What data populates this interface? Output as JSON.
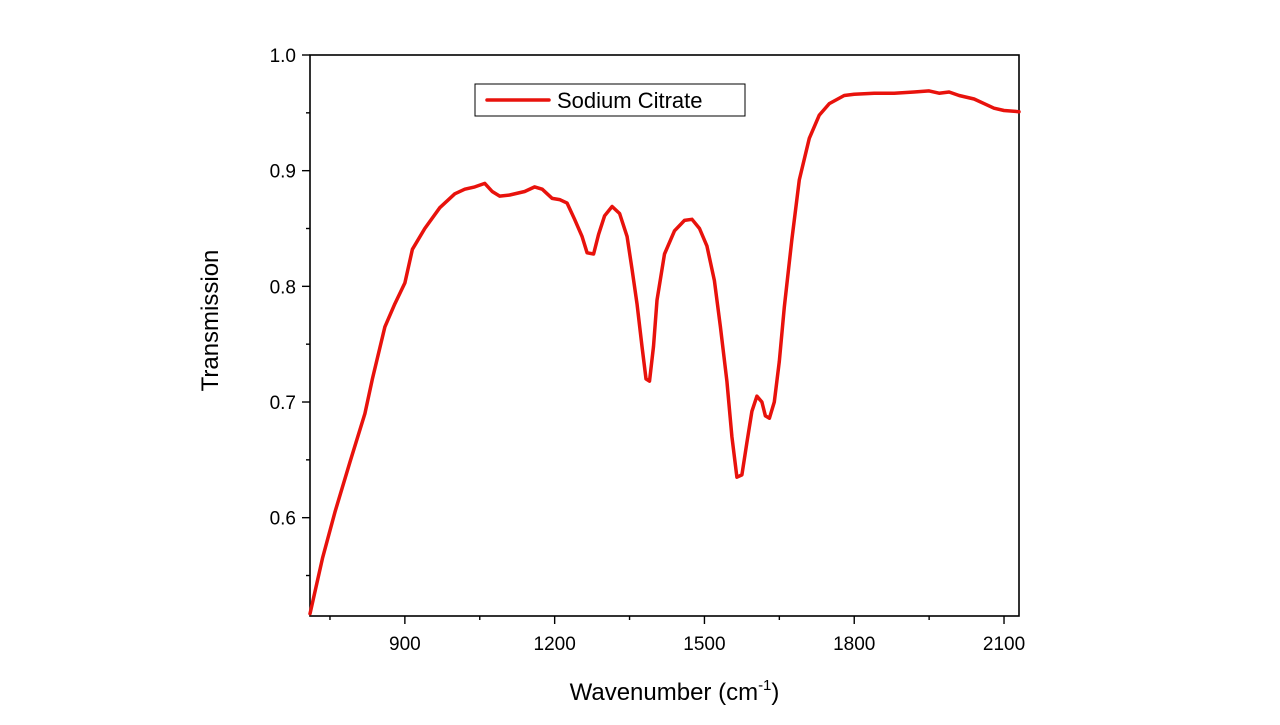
{
  "chart_data": {
    "type": "line",
    "xlabel": "Wavenumber (cm",
    "xlabel_superscript": "-1",
    "xlabel_suffix": ")",
    "ylabel": "Transmission",
    "xlim": [
      710,
      2130
    ],
    "ylim": [
      0.515,
      1.0
    ],
    "xticks": [
      900,
      1200,
      1500,
      1800,
      2100
    ],
    "yticks": [
      0.6,
      0.7,
      0.8,
      0.9,
      1.0
    ],
    "xtick_labels": [
      "900",
      "1200",
      "1500",
      "1800",
      "2100"
    ],
    "ytick_labels": [
      "0.6",
      "0.7",
      "0.8",
      "0.9",
      "1.0"
    ],
    "grid": false,
    "legend_position": "top-left-inside",
    "series": [
      {
        "name": "Sodium Citrate",
        "color": "#e8120c",
        "x": [
          710,
          735,
          760,
          790,
          820,
          835,
          860,
          880,
          900,
          915,
          940,
          970,
          1000,
          1020,
          1040,
          1060,
          1075,
          1090,
          1110,
          1140,
          1160,
          1175,
          1195,
          1210,
          1225,
          1240,
          1255,
          1265,
          1278,
          1288,
          1300,
          1315,
          1330,
          1345,
          1355,
          1365,
          1375,
          1383,
          1390,
          1398,
          1405,
          1420,
          1440,
          1460,
          1475,
          1490,
          1505,
          1520,
          1532,
          1545,
          1555,
          1565,
          1575,
          1585,
          1595,
          1605,
          1615,
          1622,
          1630,
          1640,
          1650,
          1660,
          1675,
          1690,
          1710,
          1730,
          1750,
          1780,
          1800,
          1840,
          1880,
          1920,
          1950,
          1970,
          1990,
          2010,
          2040,
          2060,
          2080,
          2100,
          2130
        ],
        "y": [
          0.517,
          0.565,
          0.605,
          0.648,
          0.69,
          0.72,
          0.765,
          0.785,
          0.803,
          0.832,
          0.85,
          0.868,
          0.88,
          0.884,
          0.886,
          0.889,
          0.882,
          0.878,
          0.879,
          0.882,
          0.886,
          0.884,
          0.876,
          0.875,
          0.872,
          0.858,
          0.843,
          0.829,
          0.828,
          0.845,
          0.861,
          0.869,
          0.863,
          0.843,
          0.815,
          0.785,
          0.748,
          0.72,
          0.718,
          0.748,
          0.788,
          0.828,
          0.848,
          0.857,
          0.858,
          0.85,
          0.835,
          0.805,
          0.765,
          0.718,
          0.67,
          0.635,
          0.637,
          0.665,
          0.692,
          0.705,
          0.7,
          0.688,
          0.686,
          0.7,
          0.735,
          0.782,
          0.84,
          0.892,
          0.928,
          0.948,
          0.958,
          0.965,
          0.966,
          0.967,
          0.967,
          0.968,
          0.969,
          0.967,
          0.968,
          0.965,
          0.962,
          0.958,
          0.954,
          0.952,
          0.951
        ]
      }
    ]
  }
}
